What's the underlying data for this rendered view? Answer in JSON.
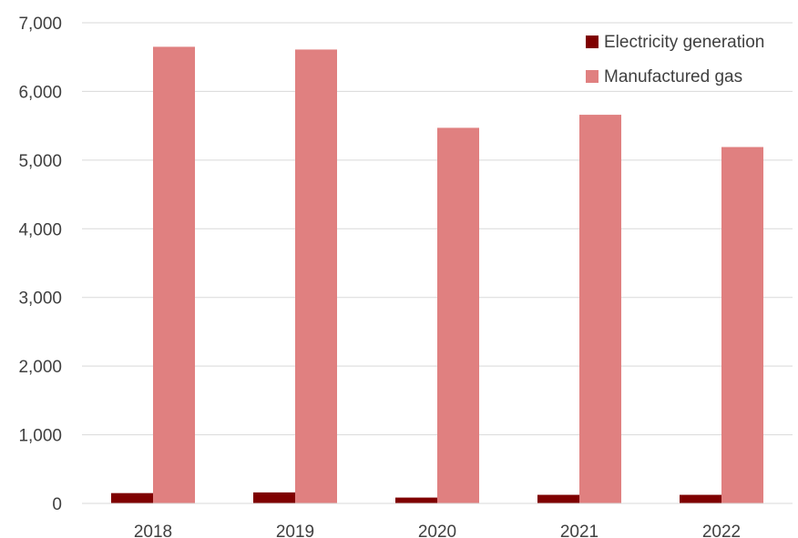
{
  "chart_data": {
    "type": "bar",
    "title": "",
    "xlabel": "",
    "ylabel": "",
    "categories": [
      "2018",
      "2019",
      "2020",
      "2021",
      "2022"
    ],
    "ylim": [
      0,
      7000
    ],
    "yticks": [
      0,
      1000,
      2000,
      3000,
      4000,
      5000,
      6000,
      7000
    ],
    "ytick_labels": [
      "0",
      "1,000",
      "2,000",
      "3,000",
      "4,000",
      "5,000",
      "6,000",
      "7,000"
    ],
    "grid": true,
    "legend_position": "top-right",
    "series": [
      {
        "name": "Electricity generation",
        "color": "#7f0000",
        "values": [
          150,
          160,
          85,
          125,
          125
        ]
      },
      {
        "name": "Manufactured gas",
        "color": "#e08080",
        "values": [
          6650,
          6610,
          5470,
          5660,
          5190
        ]
      }
    ]
  }
}
